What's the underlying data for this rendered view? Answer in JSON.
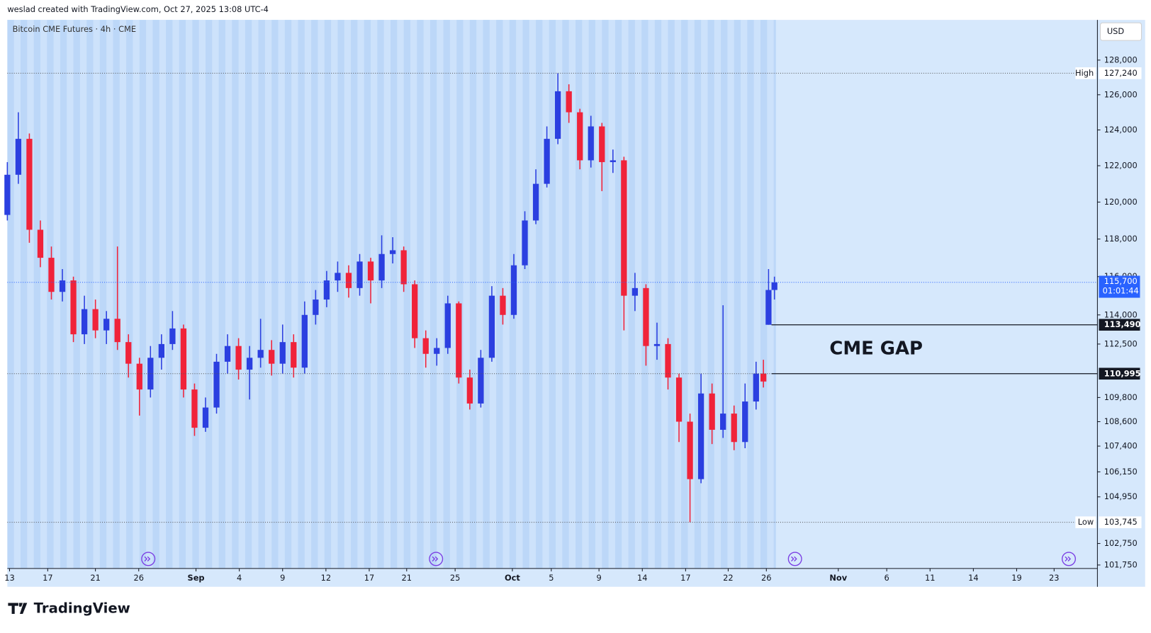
{
  "header": {
    "attribution": "weslad created with TradingView.com, Oct 27, 2025 13:08 UTC-4"
  },
  "logo": "TradingView",
  "chart_data": {
    "type": "candlestick",
    "title": "Bitcoin CME Futures · 4h · CME",
    "currency": "USD",
    "log_scale": true,
    "up_color": "#2b3fe0",
    "down_color": "#f0233a",
    "annotation": "CME GAP",
    "countdown": "01:01:44",
    "x": [
      0,
      15,
      30,
      45,
      60,
      75,
      90,
      105,
      120,
      135,
      150,
      165,
      180,
      195,
      210,
      225,
      240,
      255,
      270,
      285,
      300,
      315,
      330,
      345,
      360,
      375,
      390,
      405,
      420,
      435,
      450,
      465,
      480,
      495,
      510,
      525,
      540,
      555,
      570,
      585,
      600,
      615,
      630,
      645,
      660,
      675,
      690,
      705,
      720,
      735,
      750,
      765,
      780,
      795,
      810,
      825,
      840,
      855,
      870,
      885,
      900,
      915,
      930,
      945,
      960,
      975,
      990,
      1005,
      1020,
      1030,
      1037,
      1045
    ],
    "open": [
      119300,
      121500,
      123500,
      118500,
      117000,
      115200,
      115800,
      113000,
      114300,
      113200,
      113800,
      112600,
      111500,
      110200,
      111800,
      112500,
      113300,
      110200,
      108300,
      109300,
      111600,
      112400,
      111200,
      111800,
      112200,
      111500,
      112600,
      111300,
      114000,
      114800,
      115800,
      116200,
      115400,
      116800,
      115800,
      117200,
      117400,
      115600,
      112800,
      112000,
      112300,
      114600,
      110800,
      109500,
      111800,
      115000,
      114000,
      116600,
      119000,
      121000,
      123500,
      126200,
      125000,
      122300,
      124200,
      122200,
      122300,
      115000,
      115400,
      112400,
      112500,
      110800,
      108600,
      105800,
      110000,
      108200,
      109000,
      107600,
      109600,
      111000,
      113490,
      115300
    ],
    "high": [
      122200,
      125000,
      123800,
      119000,
      117600,
      116400,
      116000,
      115000,
      114800,
      114200,
      117600,
      113000,
      111800,
      112400,
      113000,
      114200,
      113500,
      110500,
      109800,
      112000,
      113000,
      112800,
      112400,
      113800,
      112700,
      113500,
      113000,
      114700,
      115300,
      116300,
      116800,
      116600,
      117200,
      117000,
      118200,
      118100,
      117600,
      115800,
      113200,
      112800,
      115000,
      114700,
      111200,
      112200,
      115500,
      115400,
      117200,
      119500,
      121800,
      124200,
      127240,
      126600,
      125200,
      124800,
      124400,
      122900,
      122500,
      116200,
      115600,
      113600,
      112800,
      111000,
      109000,
      111000,
      110500,
      114500,
      109400,
      110500,
      111600,
      111700,
      116400,
      116000
    ],
    "low": [
      119000,
      121000,
      117800,
      116500,
      114800,
      114700,
      112600,
      112500,
      112800,
      112500,
      112200,
      110800,
      108900,
      109800,
      111200,
      112200,
      109800,
      107900,
      108100,
      109000,
      111000,
      110700,
      109700,
      111300,
      110900,
      111000,
      110800,
      111000,
      113500,
      114400,
      115200,
      114900,
      115000,
      114600,
      115400,
      116700,
      115200,
      112300,
      111300,
      111400,
      112000,
      110500,
      109200,
      109300,
      111600,
      113500,
      113800,
      116400,
      118800,
      120800,
      123200,
      124400,
      121800,
      121900,
      120600,
      121600,
      113200,
      114200,
      111400,
      111700,
      110200,
      107600,
      103745,
      105600,
      107500,
      107800,
      107200,
      107300,
      109200,
      110300,
      113490,
      114800
    ],
    "close": [
      121500,
      123500,
      118500,
      117000,
      115200,
      115800,
      113000,
      114300,
      113200,
      113800,
      112600,
      111500,
      110200,
      111800,
      112500,
      113300,
      110200,
      108300,
      109300,
      111600,
      112400,
      111200,
      111800,
      112200,
      111500,
      112600,
      111300,
      114000,
      114800,
      115800,
      116200,
      115400,
      116800,
      115800,
      117200,
      117400,
      115600,
      112800,
      112000,
      112300,
      114600,
      110800,
      109500,
      111800,
      115000,
      114000,
      116600,
      119000,
      121000,
      123500,
      126200,
      125000,
      122300,
      124200,
      122200,
      122300,
      115000,
      115400,
      112400,
      112500,
      110800,
      108600,
      105800,
      110000,
      108200,
      109000,
      107600,
      109600,
      111000,
      110600,
      115300,
      115700
    ],
    "xlim": [
      0,
      1485
    ],
    "xticks": [
      {
        "value": 3,
        "label": "13"
      },
      {
        "value": 55,
        "label": "17"
      },
      {
        "value": 120,
        "label": "21"
      },
      {
        "value": 179,
        "label": "26"
      },
      {
        "value": 257,
        "label": "Sep"
      },
      {
        "value": 316,
        "label": "4"
      },
      {
        "value": 375,
        "label": "9"
      },
      {
        "value": 434,
        "label": "12"
      },
      {
        "value": 493,
        "label": "17"
      },
      {
        "value": 544,
        "label": "21"
      },
      {
        "value": 610,
        "label": "25"
      },
      {
        "value": 688,
        "label": "Oct"
      },
      {
        "value": 741,
        "label": "5"
      },
      {
        "value": 806,
        "label": "9"
      },
      {
        "value": 865,
        "label": "14"
      },
      {
        "value": 924,
        "label": "17"
      },
      {
        "value": 982,
        "label": "22"
      },
      {
        "value": 1034,
        "label": "26"
      },
      {
        "value": 1132,
        "label": "Nov"
      },
      {
        "value": 1198,
        "label": "6"
      },
      {
        "value": 1257,
        "label": "11"
      },
      {
        "value": 1316,
        "label": "14"
      },
      {
        "value": 1375,
        "label": "19"
      },
      {
        "value": 1426,
        "label": "23"
      }
    ],
    "ylim": [
      101590,
      130360
    ],
    "yticks": [
      {
        "value": 101750,
        "label": "101,750"
      },
      {
        "value": 102750,
        "label": "102,750"
      },
      {
        "value": 104950,
        "label": "104,950"
      },
      {
        "value": 106150,
        "label": "106,150"
      },
      {
        "value": 107400,
        "label": "107,400"
      },
      {
        "value": 108600,
        "label": "108,600"
      },
      {
        "value": 109800,
        "label": "109,800"
      },
      {
        "value": 112500,
        "label": "112,500"
      },
      {
        "value": 114000,
        "label": "114,000"
      },
      {
        "value": 116000,
        "label": "116,000"
      },
      {
        "value": 118000,
        "label": "118,000"
      },
      {
        "value": 120000,
        "label": "120,000"
      },
      {
        "value": 122000,
        "label": "122,000"
      },
      {
        "value": 124000,
        "label": "124,000"
      },
      {
        "value": 126000,
        "label": "126,000"
      },
      {
        "value": 128000,
        "label": "128,000"
      }
    ],
    "price_lines": [
      {
        "name": "High",
        "value": 127240,
        "label": "127,240",
        "style": "dotted"
      },
      {
        "name": "Low",
        "value": 103745,
        "label": "103,745",
        "style": "dotted"
      },
      {
        "value": 115700,
        "label": "115,700",
        "style": "current",
        "color": "#2962ff"
      },
      {
        "value": 113490,
        "label": "113,490",
        "style": "solid"
      },
      {
        "value": 110995,
        "label": "110,995",
        "style": "solid"
      }
    ]
  }
}
